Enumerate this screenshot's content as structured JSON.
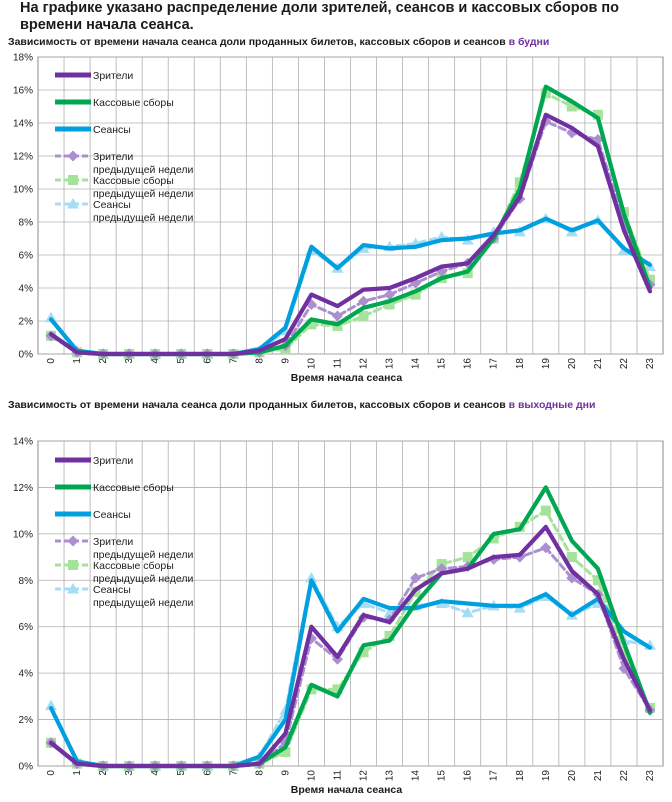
{
  "page": {
    "title": "На графике указано распределение доли зрителей, сеансов и кассовых сборов по времени начала сеанса."
  },
  "colors": {
    "viewers": "#7030a0",
    "box_office": "#00a651",
    "sessions": "#00a0e0",
    "viewers_prev": "#ac8fd0",
    "box_office_prev": "#a6e39a",
    "sessions_prev": "#a6ddf4",
    "grid": "#b0b0b0",
    "highlight": "#7030a0"
  },
  "chart_data": [
    {
      "type": "line",
      "id": "weekday",
      "title": "Зависимость от времени начала сеанса доли проданных билетов, кассовых сборов и сеансов",
      "title_highlight": "в будни",
      "xlabel": "Время начала сеанса",
      "ylabel": "",
      "categories": [
        "0",
        "1",
        "2",
        "3",
        "4",
        "5",
        "6",
        "7",
        "8",
        "9",
        "10",
        "11",
        "12",
        "13",
        "14",
        "15",
        "16",
        "17",
        "18",
        "19",
        "20",
        "21",
        "22",
        "23"
      ],
      "ylim": [
        0,
        18
      ],
      "yticks": [
        0,
        2,
        4,
        6,
        8,
        10,
        12,
        14,
        16,
        18
      ],
      "ytick_labels": [
        "0%",
        "2%",
        "4%",
        "6%",
        "8%",
        "10%",
        "12%",
        "14%",
        "16%",
        "18%"
      ],
      "grid": true,
      "legend_position": "top-left",
      "series": [
        {
          "name": "Сеансы предыдущей недели",
          "key": "sessions_prev",
          "style": "prev",
          "marker": "triangle",
          "values": [
            2.2,
            0.2,
            0,
            0,
            0,
            0,
            0,
            0,
            0.2,
            1.4,
            6.3,
            5.2,
            6.4,
            6.5,
            6.7,
            7.1,
            6.9,
            7.4,
            7.4,
            8.2,
            7.4,
            8.1,
            6.3,
            5.3
          ]
        },
        {
          "name": "Кассовые сборы предыдущей недели",
          "key": "box_office_prev",
          "style": "prev",
          "marker": "square",
          "values": [
            1.1,
            0.1,
            0,
            0,
            0,
            0,
            0,
            0,
            0.1,
            0.3,
            1.8,
            1.7,
            2.3,
            3.0,
            3.6,
            4.6,
            4.9,
            7.0,
            10.4,
            15.8,
            15.0,
            14.5,
            8.6,
            4.5
          ]
        },
        {
          "name": "Зрители предыдущей недели",
          "key": "viewers_prev",
          "style": "prev",
          "marker": "diamond",
          "values": [
            1.1,
            0.1,
            0,
            0,
            0,
            0,
            0,
            0,
            0.1,
            0.5,
            3.0,
            2.3,
            3.2,
            3.6,
            4.3,
            5.0,
            5.5,
            7.0,
            9.4,
            14.1,
            13.4,
            13.0,
            8.0,
            4.2
          ]
        },
        {
          "name": "Сеансы",
          "key": "sessions",
          "style": "current",
          "marker": "none",
          "values": [
            2.1,
            0.2,
            0,
            0,
            0,
            0,
            0,
            0,
            0.3,
            1.6,
            6.5,
            5.2,
            6.6,
            6.4,
            6.5,
            6.9,
            7.0,
            7.3,
            7.5,
            8.2,
            7.5,
            8.1,
            6.4,
            5.4
          ]
        },
        {
          "name": "Кассовые сборы",
          "key": "box_office",
          "style": "current",
          "marker": "none",
          "values": [
            1.2,
            0.1,
            0,
            0,
            0,
            0,
            0,
            0,
            0.1,
            0.5,
            2.1,
            1.8,
            2.8,
            3.2,
            3.8,
            4.6,
            5.0,
            7.0,
            10.0,
            16.2,
            15.3,
            14.3,
            8.5,
            4.0
          ]
        },
        {
          "name": "Зрители",
          "key": "viewers",
          "style": "current",
          "marker": "none",
          "values": [
            1.2,
            0.1,
            0,
            0,
            0,
            0,
            0,
            0,
            0.2,
            0.9,
            3.6,
            2.9,
            3.9,
            4.0,
            4.6,
            5.3,
            5.5,
            7.2,
            9.5,
            14.5,
            13.7,
            12.6,
            7.5,
            3.8
          ]
        }
      ],
      "legend": [
        {
          "key": "viewers",
          "style": "current",
          "marker": "none",
          "lines": [
            "Зрители"
          ]
        },
        {
          "key": "box_office",
          "style": "current",
          "marker": "none",
          "lines": [
            "Кассовые сборы"
          ]
        },
        {
          "key": "sessions",
          "style": "current",
          "marker": "none",
          "lines": [
            "Сеансы"
          ]
        },
        {
          "key": "viewers_prev",
          "style": "prev",
          "marker": "diamond",
          "lines": [
            "Зрители",
            "предыдущей недели"
          ]
        },
        {
          "key": "box_office_prev",
          "style": "prev",
          "marker": "square",
          "lines": [
            "Кассовые сборы",
            "предыдущей недели"
          ]
        },
        {
          "key": "sessions_prev",
          "style": "prev",
          "marker": "triangle",
          "lines": [
            "Сеансы",
            "предыдущей недели"
          ]
        }
      ]
    },
    {
      "type": "line",
      "id": "weekend",
      "title": "Зависимость от времени начала сеанса доли проданных билетов, кассовых сборов и сеансов",
      "title_highlight": "в выходные дни",
      "xlabel": "Время начала сеанса",
      "ylabel": "",
      "categories": [
        "0",
        "1",
        "2",
        "3",
        "4",
        "5",
        "6",
        "7",
        "8",
        "9",
        "10",
        "11",
        "12",
        "13",
        "14",
        "15",
        "16",
        "17",
        "18",
        "19",
        "20",
        "21",
        "22",
        "23"
      ],
      "ylim": [
        0,
        14
      ],
      "yticks": [
        0,
        2,
        4,
        6,
        8,
        10,
        12,
        14
      ],
      "ytick_labels": [
        "0%",
        "2%",
        "4%",
        "6%",
        "8%",
        "10%",
        "12%",
        "14%"
      ],
      "grid": true,
      "legend_position": "top-left",
      "series": [
        {
          "name": "Сеансы предыдущей недели",
          "key": "sessions_prev",
          "style": "prev",
          "marker": "triangle",
          "values": [
            2.6,
            0.2,
            0,
            0,
            0,
            0,
            0,
            0,
            0.4,
            2.4,
            8.1,
            6.0,
            7.0,
            6.6,
            6.9,
            7.0,
            6.6,
            6.9,
            6.8,
            7.3,
            6.5,
            7.0,
            5.4,
            5.2
          ]
        },
        {
          "name": "Кассовые сборы предыдущей недели",
          "key": "box_office_prev",
          "style": "prev",
          "marker": "square",
          "values": [
            1.0,
            0.1,
            0,
            0,
            0,
            0,
            0,
            0,
            0.1,
            0.6,
            3.3,
            3.3,
            4.9,
            5.6,
            7.5,
            8.7,
            9.0,
            9.8,
            10.3,
            11.0,
            9.0,
            8.0,
            4.8,
            2.5
          ]
        },
        {
          "name": "Зрители предыдущей недели",
          "key": "viewers_prev",
          "style": "prev",
          "marker": "diamond",
          "values": [
            1.0,
            0.1,
            0,
            0,
            0,
            0,
            0,
            0,
            0.1,
            1.0,
            5.5,
            4.6,
            6.4,
            6.3,
            8.1,
            8.5,
            8.6,
            8.9,
            9.0,
            9.4,
            8.1,
            7.4,
            4.2,
            2.4
          ]
        },
        {
          "name": "Сеансы",
          "key": "sessions",
          "style": "current",
          "marker": "none",
          "values": [
            2.5,
            0.2,
            0,
            0,
            0,
            0,
            0,
            0,
            0.4,
            2.0,
            8.0,
            5.8,
            7.2,
            6.8,
            6.8,
            7.1,
            7.0,
            6.9,
            6.9,
            7.4,
            6.5,
            7.2,
            5.8,
            5.1
          ]
        },
        {
          "name": "Кассовые сборы",
          "key": "box_office",
          "style": "current",
          "marker": "none",
          "values": [
            1.0,
            0.1,
            0,
            0,
            0,
            0,
            0,
            0,
            0.1,
            0.8,
            3.5,
            3.0,
            5.2,
            5.4,
            7.0,
            8.3,
            8.5,
            10.0,
            10.2,
            12.0,
            9.7,
            8.5,
            5.3,
            2.3
          ]
        },
        {
          "name": "Зрители",
          "key": "viewers",
          "style": "current",
          "marker": "none",
          "values": [
            1.0,
            0.1,
            0,
            0,
            0,
            0,
            0,
            0,
            0.1,
            1.4,
            6.0,
            4.7,
            6.5,
            6.2,
            7.6,
            8.3,
            8.5,
            9.0,
            9.1,
            10.3,
            8.4,
            7.4,
            4.6,
            2.4
          ]
        }
      ],
      "legend": [
        {
          "key": "viewers",
          "style": "current",
          "marker": "none",
          "lines": [
            "Зрители"
          ]
        },
        {
          "key": "box_office",
          "style": "current",
          "marker": "none",
          "lines": [
            "Кассовые сборы"
          ]
        },
        {
          "key": "sessions",
          "style": "current",
          "marker": "none",
          "lines": [
            "Сеансы"
          ]
        },
        {
          "key": "viewers_prev",
          "style": "prev",
          "marker": "diamond",
          "lines": [
            "Зрители",
            "предыдущей недели"
          ]
        },
        {
          "key": "box_office_prev",
          "style": "prev",
          "marker": "square",
          "lines": [
            "Кассовые сборы",
            "предыдущей недели"
          ]
        },
        {
          "key": "sessions_prev",
          "style": "prev",
          "marker": "triangle",
          "lines": [
            "Сеансы",
            "предыдущей недели"
          ]
        }
      ]
    }
  ]
}
